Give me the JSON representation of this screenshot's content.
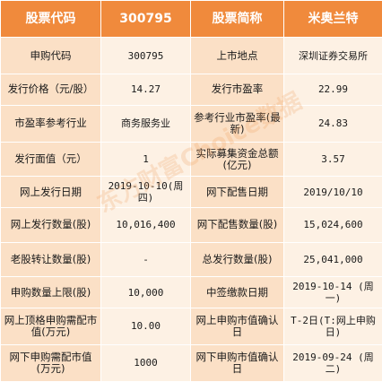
{
  "header": {
    "c1": "股票代码",
    "c2": "300795",
    "c3": "股票简称",
    "c4": "米奥兰特"
  },
  "rows": [
    {
      "k1": "申购代码",
      "v1": "300795",
      "k2": "上市地点",
      "v2": "深圳证券交易所"
    },
    {
      "k1": "发行价格（元/股）",
      "v1": "14.27",
      "k2": "发行市盈率",
      "v2": "22.99"
    },
    {
      "k1": "市盈率参考行业",
      "v1": "商务服务业",
      "k2": "参考行业市盈率(最新)",
      "v2": "24.83"
    },
    {
      "k1": "发行面值（元）",
      "v1": "1",
      "k2": "实际募集资金总额(亿元)",
      "v2": "3.57"
    },
    {
      "k1": "网上发行日期",
      "v1": "2019-10-10(周四)",
      "k2": "网下配售日期",
      "v2": "2019/10/10"
    },
    {
      "k1": "网上发行数量(股)",
      "v1": "10,016,400",
      "k2": "网下配售数量(股)",
      "v2": "15,024,600"
    },
    {
      "k1": "老股转让数量(股)",
      "v1": "-",
      "k2": "总发行数量(股)",
      "v2": "25,041,000"
    },
    {
      "k1": "申购数量上限(股)",
      "v1": "10,000",
      "k2": "中签缴款日期",
      "v2": "2019-10-14 (周一)"
    },
    {
      "k1": "网上顶格申购需配市值(万元)",
      "v1": "10.00",
      "k2": "网上申购市值确认日",
      "v2": "T-2日(T:网上申购日)"
    },
    {
      "k1": "网下申购需配市值(万元)",
      "v1": "1000",
      "k2": "网下申购市值确认日",
      "v2": "2019-09-24 (周二)"
    }
  ],
  "watermark": "东方财富Choice数据"
}
